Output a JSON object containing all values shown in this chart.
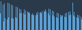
{
  "values": [
    0.55,
    0.95,
    0.45,
    0.85,
    0.3,
    0.9,
    0.4,
    0.88,
    0.35,
    0.92,
    0.42,
    0.88,
    0.38,
    0.85,
    0.4,
    0.82,
    0.38,
    0.8,
    0.42,
    0.78,
    0.4,
    0.75,
    0.5,
    0.72,
    0.55,
    0.7,
    0.58,
    0.72,
    0.55,
    0.68,
    0.52,
    0.65,
    0.55,
    0.62,
    0.58,
    0.6,
    0.55,
    0.58,
    0.52,
    0.55,
    0.5,
    0.52,
    0.55,
    0.5,
    0.58,
    0.52,
    0.6,
    0.55,
    0.58,
    0.6,
    0.55,
    0.62,
    0.58,
    0.65,
    0.6,
    0.68,
    0.62,
    0.7,
    0.55,
    0.72,
    0.5,
    0.68,
    0.52,
    0.65,
    0.48,
    0.62,
    0.45,
    0.6,
    0.42,
    0.58,
    0.4,
    0.55,
    0.42,
    0.52,
    0.45,
    0.5,
    0.48,
    0.52,
    0.45,
    0.55,
    0.42,
    0.58,
    0.45,
    0.6,
    0.48,
    0.62,
    0.52,
    0.65,
    0.92,
    0.48,
    0.6,
    0.45,
    0.55,
    0.42,
    0.52,
    0.4,
    0.48,
    0.38,
    0.45,
    0.35
  ],
  "bar_color": "#5b9fd4",
  "bg_color": "#2a3a4a",
  "ylim_min": 0.0,
  "ylim_max": 1.0
}
